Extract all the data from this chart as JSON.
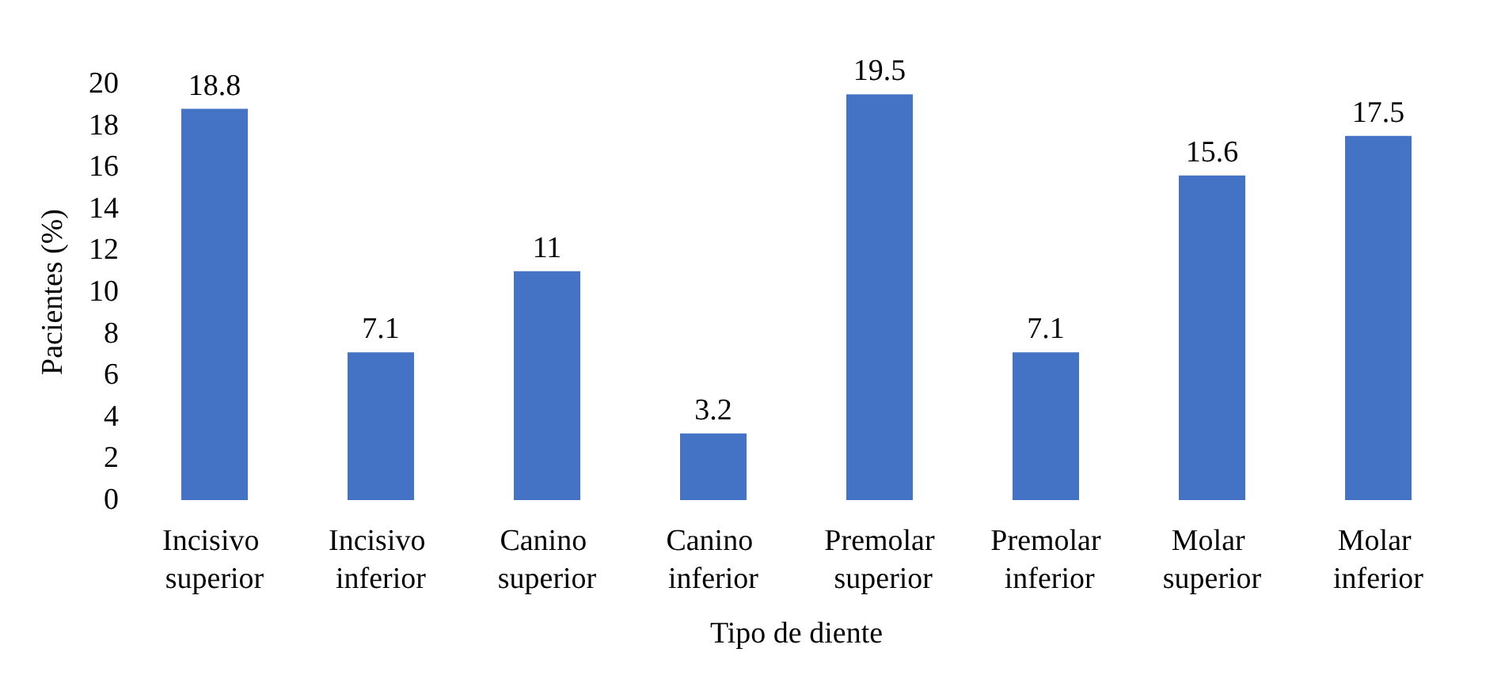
{
  "chart_data": {
    "type": "bar",
    "xlabel": "Tipo de diente",
    "ylabel": "Pacientes (%)",
    "categories": [
      "Incisivo superior",
      "Incisivo inferior",
      "Canino superior",
      "Canino inferior",
      "Premolar superior",
      "Premolar inferior",
      "Molar superior",
      "Molar inferior"
    ],
    "values": [
      18.8,
      7.1,
      11,
      3.2,
      19.5,
      7.1,
      15.6,
      17.5
    ],
    "color": "#4472c4",
    "ylim": [
      0,
      20
    ],
    "yticks": [
      0,
      2,
      4,
      6,
      8,
      10,
      12,
      14,
      16,
      18,
      20
    ],
    "data_labels": true,
    "grid": false
  }
}
